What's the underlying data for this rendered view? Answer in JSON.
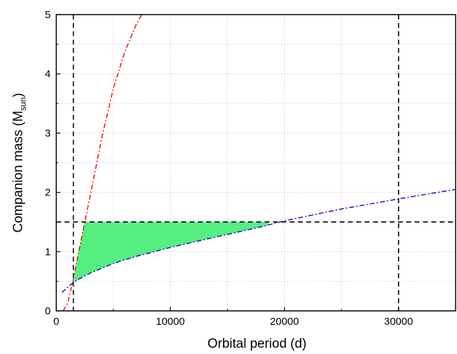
{
  "chart_data": {
    "type": "line",
    "title": "",
    "xlabel": "Orbital period (d)",
    "ylabel": {
      "main": "Companion mass (M",
      "subscript": "sun",
      "close": ")"
    },
    "xlim": [
      0,
      35000
    ],
    "ylim": [
      0,
      5
    ],
    "xticks": [
      0,
      10000,
      20000,
      30000
    ],
    "xtick_labels": [
      "0",
      "10000",
      "20000",
      "30000"
    ],
    "yticks": [
      0,
      1,
      2,
      3,
      4,
      5
    ],
    "ytick_labels": [
      "0",
      "1",
      "2",
      "3",
      "4",
      "5"
    ],
    "grid": true,
    "legend": "none",
    "series": [
      {
        "color": "#e8140c",
        "style": "dash-dot",
        "x": [
          600,
          1000,
          1500,
          2000,
          2500,
          3000,
          3500,
          4000,
          5000,
          6000,
          7000,
          7500
        ],
        "y": [
          0.0,
          0.13,
          0.53,
          1.03,
          1.5,
          1.97,
          2.45,
          2.93,
          3.75,
          4.37,
          4.83,
          5.0
        ]
      },
      {
        "color": "#1414c8",
        "style": "dash-dot",
        "x": [
          500,
          1000,
          1500,
          2000,
          3000,
          4000,
          5000,
          7000,
          10000,
          12000,
          15000,
          18000,
          20000,
          25000,
          30000,
          35000
        ],
        "y": [
          0.31,
          0.4,
          0.48,
          0.54,
          0.64,
          0.72,
          0.8,
          0.92,
          1.07,
          1.16,
          1.29,
          1.42,
          1.52,
          1.72,
          1.89,
          2.05
        ]
      }
    ],
    "reference_lines": {
      "vertical": [
        1500,
        30000
      ],
      "horizontal": [
        1.5
      ],
      "color": "#000000",
      "style": "dashed"
    },
    "shaded_region": {
      "fill": "#55ee80",
      "x_range": [
        1600,
        18600
      ],
      "y_max": 1.5
    }
  }
}
